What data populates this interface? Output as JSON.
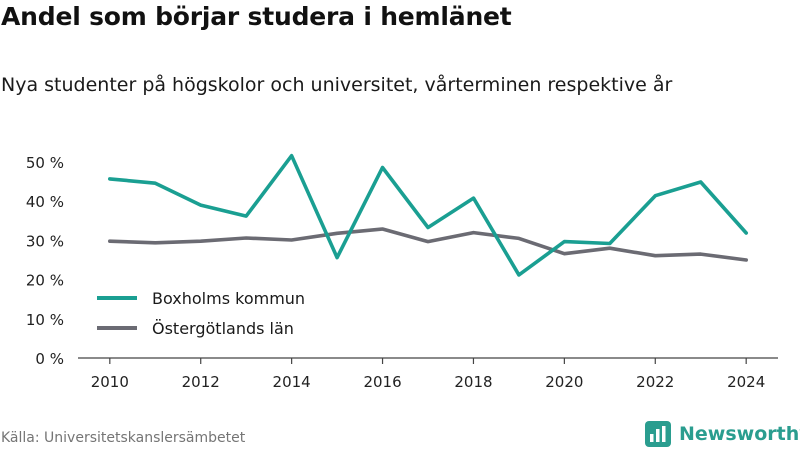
{
  "header": {
    "title": "Andel som börjar studera i hemlänet",
    "subtitle": "Nya studenter på högskolor och universitet, vårterminen respektive år"
  },
  "footer": {
    "source": "Källa: Universitetskanslersämbetet",
    "brand": "Newsworthy",
    "brand_icon": "bar-chart-logo-icon"
  },
  "colors": {
    "boxholm": "#1a9f92",
    "ostergotland": "#6b6b73",
    "axis": "#444444",
    "brand": "#2a9d8f"
  },
  "chart_data": {
    "type": "line",
    "title": "Andel som börjar studera i hemlänet",
    "subtitle": "Nya studenter på högskolor och universitet, vårterminen respektive år",
    "xlabel": "",
    "ylabel": "",
    "x": [
      2010,
      2011,
      2012,
      2013,
      2014,
      2015,
      2016,
      2017,
      2018,
      2019,
      2020,
      2021,
      2022,
      2023,
      2024
    ],
    "xticks": [
      "2010",
      "2012",
      "2014",
      "2016",
      "2018",
      "2020",
      "2022",
      "2024"
    ],
    "xtick_values": [
      2010,
      2012,
      2014,
      2016,
      2018,
      2020,
      2022,
      2024
    ],
    "xlim": [
      2009.3,
      2024.7
    ],
    "yticks": [
      "0 %",
      "10 %",
      "20 %",
      "30 %",
      "40 %",
      "50 %"
    ],
    "ytick_values": [
      0,
      10,
      20,
      30,
      40,
      50
    ],
    "ylim": [
      0,
      50
    ],
    "grid": false,
    "legend_position": "bottom-left",
    "series": [
      {
        "name": "Boxholms kommun",
        "color": "#1a9f92",
        "values": [
          45.7,
          44.6,
          39.0,
          36.2,
          51.6,
          25.6,
          48.6,
          33.3,
          40.8,
          21.2,
          29.7,
          29.2,
          41.4,
          44.9,
          31.9
        ]
      },
      {
        "name": "Östergötlands län",
        "color": "#6b6b73",
        "values": [
          29.8,
          29.4,
          29.8,
          30.6,
          30.1,
          31.8,
          32.9,
          29.7,
          32.0,
          30.5,
          26.6,
          28.0,
          26.1,
          26.5,
          25.0
        ]
      }
    ]
  }
}
